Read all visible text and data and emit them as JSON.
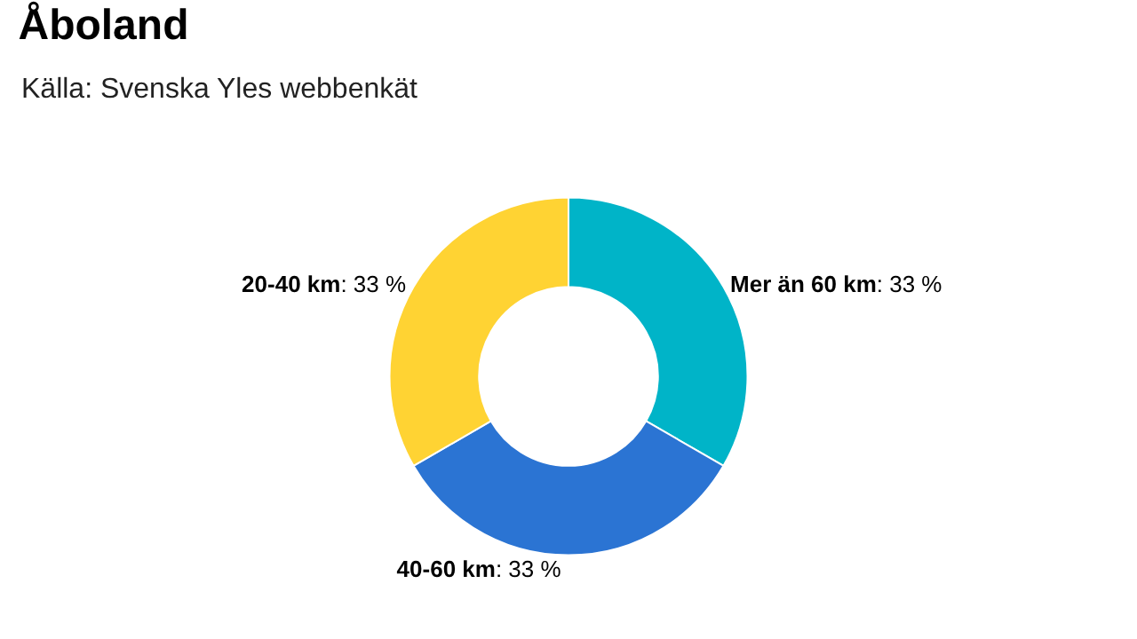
{
  "chart_data": {
    "type": "donut",
    "title": "Åboland",
    "subtitle": "Källa: Svenska Yles webbenkät",
    "categories": [
      "Mer än 60 km",
      "40-60 km",
      "20-40 km"
    ],
    "values": [
      33,
      33,
      33
    ],
    "value_labels": [
      ": 33 %",
      ": 33 %",
      ": 33 %"
    ],
    "colors": [
      "#00b4c8",
      "#2b74d3",
      "#ffd333"
    ],
    "legend": false
  }
}
